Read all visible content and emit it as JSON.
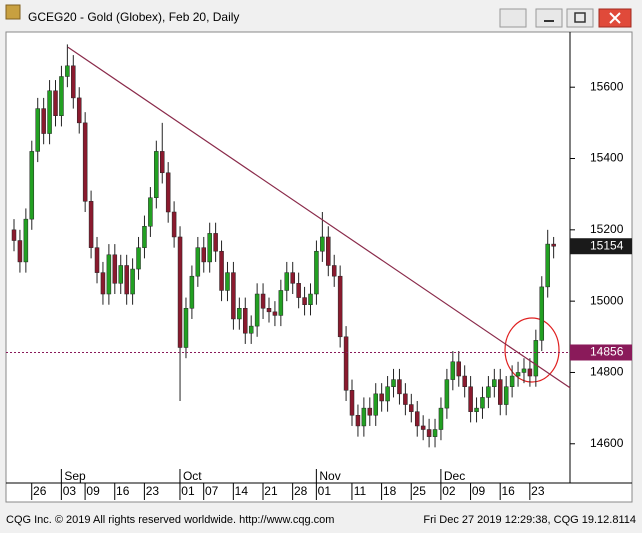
{
  "chart_data": {
    "type": "candlestick",
    "title": "GCEG20 - Gold (Globex), Feb 20, Daily",
    "categories": [
      null,
      null,
      null,
      null,
      "26",
      null,
      null,
      null,
      null,
      "03",
      null,
      null,
      null,
      "09",
      null,
      null,
      null,
      null,
      "16",
      null,
      null,
      null,
      null,
      "23",
      null,
      null,
      null,
      null,
      null,
      "01",
      null,
      null,
      null,
      "07",
      null,
      null,
      null,
      null,
      "14",
      null,
      null,
      null,
      null,
      "21",
      null,
      null,
      null,
      null,
      "28",
      null,
      null,
      null,
      "01",
      null,
      null,
      null,
      null,
      null,
      "11",
      null,
      null,
      null,
      null,
      "18",
      null,
      null,
      null,
      null,
      "25",
      null,
      null,
      null,
      null,
      "02",
      null,
      null,
      null,
      null,
      "09",
      null,
      null,
      null,
      null,
      "16",
      null,
      null,
      null,
      null,
      "23",
      null,
      null,
      null
    ],
    "months": [
      null,
      null,
      null,
      null,
      null,
      null,
      null,
      null,
      null,
      "Sep",
      null,
      null,
      null,
      null,
      null,
      null,
      null,
      null,
      null,
      null,
      null,
      null,
      null,
      null,
      null,
      null,
      null,
      null,
      null,
      "Oct",
      null,
      null,
      null,
      null,
      null,
      null,
      null,
      null,
      null,
      null,
      null,
      null,
      null,
      null,
      null,
      null,
      null,
      null,
      null,
      null,
      null,
      null,
      "Nov",
      null,
      null,
      null,
      null,
      null,
      null,
      null,
      null,
      null,
      null,
      null,
      null,
      null,
      null,
      null,
      null,
      null,
      null,
      null,
      null,
      "Dec",
      null,
      null,
      null,
      null,
      null,
      null,
      null,
      null,
      null,
      null,
      null,
      null,
      null,
      null,
      null,
      null,
      null,
      null
    ],
    "open": [
      15200,
      15170,
      15110,
      15230,
      15420,
      15540,
      15470,
      15590,
      15520,
      15630,
      15660,
      15570,
      15500,
      15280,
      15150,
      15080,
      15020,
      15130,
      15050,
      15100,
      15020,
      15090,
      15150,
      15210,
      15290,
      15420,
      15360,
      15250,
      15180,
      14870,
      14980,
      15070,
      15150,
      15110,
      15190,
      15140,
      15030,
      15080,
      14950,
      14980,
      14910,
      14930,
      15020,
      14980,
      14970,
      14960,
      15030,
      15080,
      15050,
      15010,
      14990,
      15020,
      15140,
      15180,
      15100,
      15070,
      14900,
      14750,
      14680,
      14650,
      14700,
      14680,
      14740,
      14720,
      14760,
      14780,
      14740,
      14710,
      14690,
      14650,
      14640,
      14620,
      14640,
      14700,
      14780,
      14830,
      14790,
      14760,
      14690,
      14700,
      14730,
      14760,
      14780,
      14710,
      14760,
      14790,
      14800,
      14810,
      14790,
      14890,
      15040,
      15160
    ],
    "high": [
      15230,
      15200,
      15260,
      15450,
      15570,
      15570,
      15620,
      15620,
      15660,
      15720,
      15690,
      15600,
      15530,
      15310,
      15180,
      15110,
      15160,
      15160,
      15130,
      15130,
      15120,
      15180,
      15240,
      15320,
      15450,
      15500,
      15390,
      15280,
      15210,
      15010,
      15100,
      15180,
      15180,
      15220,
      15220,
      15170,
      15110,
      15110,
      15010,
      15010,
      14960,
      15050,
      15050,
      15010,
      15000,
      15060,
      15110,
      15110,
      15080,
      15040,
      15050,
      15170,
      15250,
      15210,
      15130,
      15100,
      14930,
      14780,
      14710,
      14730,
      14730,
      14770,
      14770,
      14790,
      14810,
      14810,
      14770,
      14740,
      14720,
      14680,
      14670,
      14670,
      14730,
      14810,
      14860,
      14860,
      14820,
      14790,
      14730,
      14760,
      14790,
      14810,
      14810,
      14790,
      14820,
      14830,
      14840,
      14840,
      14920,
      15070,
      15200,
      15180
    ],
    "low": [
      15140,
      15080,
      15080,
      15200,
      15390,
      15440,
      15440,
      15490,
      15490,
      15600,
      15540,
      15470,
      15250,
      15120,
      15050,
      14990,
      14990,
      15020,
      15020,
      14990,
      14990,
      15060,
      15120,
      15180,
      15260,
      15330,
      15220,
      15150,
      14720,
      14840,
      14950,
      15040,
      15080,
      15080,
      15110,
      15000,
      15000,
      14920,
      14920,
      14880,
      14880,
      14900,
      14950,
      14940,
      14930,
      14930,
      15000,
      15020,
      14980,
      14960,
      14960,
      14990,
      15110,
      15070,
      15040,
      14870,
      14720,
      14650,
      14620,
      14620,
      14650,
      14650,
      14690,
      14690,
      14730,
      14710,
      14680,
      14660,
      14620,
      14610,
      14590,
      14590,
      14610,
      14670,
      14750,
      14760,
      14730,
      14660,
      14660,
      14670,
      14700,
      14730,
      14680,
      14680,
      14730,
      14760,
      14770,
      14760,
      14760,
      14860,
      15010,
      15120
    ],
    "close": [
      15170,
      15110,
      15230,
      15420,
      15540,
      15470,
      15590,
      15520,
      15630,
      15660,
      15570,
      15500,
      15280,
      15150,
      15080,
      15020,
      15130,
      15050,
      15100,
      15020,
      15090,
      15150,
      15210,
      15290,
      15420,
      15360,
      15250,
      15180,
      14870,
      14980,
      15070,
      15150,
      15110,
      15190,
      15140,
      15030,
      15080,
      14950,
      14980,
      14910,
      14930,
      15020,
      14980,
      14970,
      14960,
      15030,
      15080,
      15050,
      15010,
      14990,
      15020,
      15140,
      15180,
      15100,
      15070,
      14900,
      14750,
      14680,
      14650,
      14700,
      14680,
      14740,
      14720,
      14760,
      14780,
      14740,
      14710,
      14690,
      14650,
      14640,
      14620,
      14640,
      14700,
      14780,
      14830,
      14790,
      14760,
      14690,
      14700,
      14730,
      14760,
      14780,
      14710,
      14760,
      14790,
      14800,
      14810,
      14790,
      14890,
      15040,
      15160,
      15154
    ],
    "up_color": "#22a022",
    "down_color": "#8a1a2e",
    "ylim": [
      14490,
      15752
    ],
    "yticks": [
      14600,
      14800,
      15000,
      15200,
      15400,
      15600
    ],
    "grid": false,
    "last_price": 15154,
    "reference_line": 14856,
    "reference_color": "#8a1a5a",
    "trend_line": {
      "start": 15712,
      "end": 14757
    },
    "footer": {
      "left": "CQG Inc. © 2019 All rights reserved worldwide. http://www.cqg.com",
      "right": "Fri Dec 27 2019 12:29:38, CQG 19.12.8114"
    }
  }
}
